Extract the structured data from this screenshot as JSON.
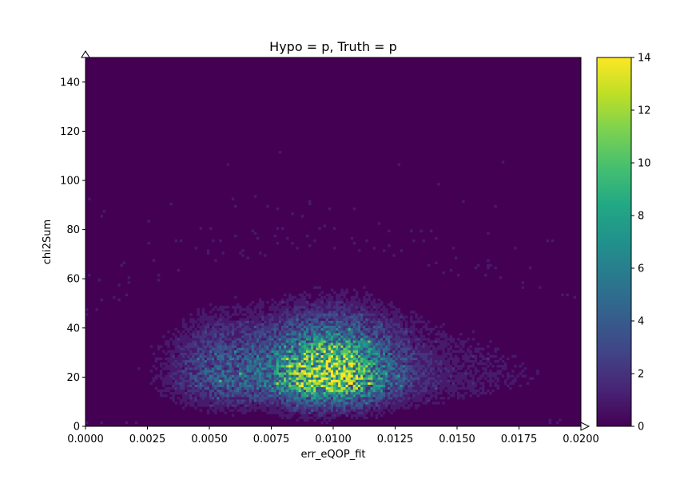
{
  "chart_data": {
    "type": "heatmap",
    "title": "Hypo = p, Truth = p",
    "xlabel": "err_eQOP_fit",
    "ylabel": "chi2Sum",
    "xlim": [
      0.0,
      0.02
    ],
    "ylim": [
      0,
      150
    ],
    "x_ticks": [
      "0.0000",
      "0.0025",
      "0.0050",
      "0.0075",
      "0.0100",
      "0.0125",
      "0.0150",
      "0.0175",
      "0.0200"
    ],
    "y_ticks": [
      "0",
      "20",
      "40",
      "60",
      "80",
      "100",
      "120",
      "140"
    ],
    "colorbar": {
      "colormap": "viridis",
      "range": [
        0,
        14
      ],
      "ticks": [
        "0",
        "2",
        "4",
        "6",
        "8",
        "10",
        "12",
        "14"
      ]
    },
    "bins": {
      "x": 200,
      "y": 150
    },
    "density_summary": {
      "peak_x": 0.0098,
      "peak_y": 20,
      "peak_count": 14,
      "secondary_cluster_x": 0.0055,
      "secondary_cluster_y": 22
    },
    "background_color": "#440154",
    "grid": false
  }
}
